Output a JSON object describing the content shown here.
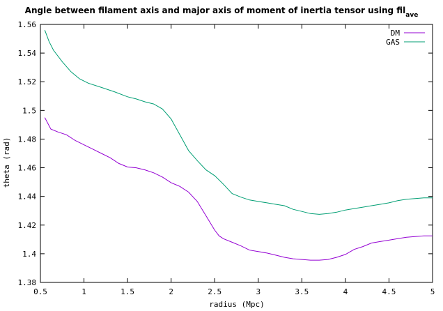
{
  "chart_data": {
    "type": "line",
    "title": "Angle between filament axis and major axis of moment of inertia tensor using fil",
    "title_subscript": "ave",
    "xlabel": "radius (Mpc)",
    "ylabel": "theta (rad)",
    "xlim": [
      0.5,
      5
    ],
    "ylim": [
      1.38,
      1.56
    ],
    "x_ticks": [
      "0.5",
      "1",
      "1.5",
      "2",
      "2.5",
      "3",
      "3.5",
      "4",
      "4.5",
      "5"
    ],
    "y_ticks": [
      "1.38",
      "1.4",
      "1.42",
      "1.44",
      "1.46",
      "1.48",
      "1.5",
      "1.52",
      "1.54",
      "1.56"
    ],
    "grid": false,
    "legend_position": "top-right",
    "series": [
      {
        "name": "DM",
        "color": "#9400d3",
        "points": [
          [
            0.55,
            1.495
          ],
          [
            0.62,
            1.487
          ],
          [
            0.7,
            1.485
          ],
          [
            0.8,
            1.483
          ],
          [
            0.9,
            1.479
          ],
          [
            1.0,
            1.476
          ],
          [
            1.1,
            1.473
          ],
          [
            1.2,
            1.47
          ],
          [
            1.3,
            1.467
          ],
          [
            1.4,
            1.463
          ],
          [
            1.5,
            1.4605
          ],
          [
            1.6,
            1.46
          ],
          [
            1.7,
            1.4585
          ],
          [
            1.8,
            1.4565
          ],
          [
            1.9,
            1.4535
          ],
          [
            2.0,
            1.4495
          ],
          [
            2.1,
            1.447
          ],
          [
            2.2,
            1.443
          ],
          [
            2.3,
            1.4365
          ],
          [
            2.4,
            1.4265
          ],
          [
            2.5,
            1.4165
          ],
          [
            2.55,
            1.4125
          ],
          [
            2.6,
            1.4105
          ],
          [
            2.7,
            1.408
          ],
          [
            2.8,
            1.4055
          ],
          [
            2.9,
            1.4025
          ],
          [
            3.0,
            1.4015
          ],
          [
            3.1,
            1.4005
          ],
          [
            3.2,
            1.399
          ],
          [
            3.3,
            1.3975
          ],
          [
            3.4,
            1.3965
          ],
          [
            3.5,
            1.396
          ],
          [
            3.6,
            1.3955
          ],
          [
            3.7,
            1.3955
          ],
          [
            3.8,
            1.396
          ],
          [
            3.9,
            1.3975
          ],
          [
            4.0,
            1.3995
          ],
          [
            4.1,
            1.403
          ],
          [
            4.2,
            1.405
          ],
          [
            4.3,
            1.4075
          ],
          [
            4.4,
            1.4085
          ],
          [
            4.5,
            1.4095
          ],
          [
            4.6,
            1.4105
          ],
          [
            4.7,
            1.4115
          ],
          [
            4.8,
            1.412
          ],
          [
            4.9,
            1.4125
          ],
          [
            5.0,
            1.4125
          ]
        ]
      },
      {
        "name": "GAS",
        "color": "#009e73",
        "points": [
          [
            0.55,
            1.556
          ],
          [
            0.6,
            1.548
          ],
          [
            0.65,
            1.542
          ],
          [
            0.75,
            1.534
          ],
          [
            0.85,
            1.527
          ],
          [
            0.95,
            1.522
          ],
          [
            1.05,
            1.519
          ],
          [
            1.2,
            1.516
          ],
          [
            1.35,
            1.513
          ],
          [
            1.5,
            1.5095
          ],
          [
            1.6,
            1.508
          ],
          [
            1.7,
            1.506
          ],
          [
            1.8,
            1.5045
          ],
          [
            1.9,
            1.501
          ],
          [
            2.0,
            1.494
          ],
          [
            2.1,
            1.483
          ],
          [
            2.2,
            1.472
          ],
          [
            2.3,
            1.465
          ],
          [
            2.4,
            1.4585
          ],
          [
            2.5,
            1.4545
          ],
          [
            2.6,
            1.4485
          ],
          [
            2.7,
            1.442
          ],
          [
            2.8,
            1.4395
          ],
          [
            2.9,
            1.4375
          ],
          [
            3.0,
            1.4365
          ],
          [
            3.1,
            1.4355
          ],
          [
            3.2,
            1.4345
          ],
          [
            3.3,
            1.4335
          ],
          [
            3.4,
            1.431
          ],
          [
            3.5,
            1.4295
          ],
          [
            3.6,
            1.428
          ],
          [
            3.7,
            1.4275
          ],
          [
            3.8,
            1.428
          ],
          [
            3.9,
            1.429
          ],
          [
            4.0,
            1.4305
          ],
          [
            4.1,
            1.4315
          ],
          [
            4.2,
            1.4325
          ],
          [
            4.3,
            1.4335
          ],
          [
            4.4,
            1.4345
          ],
          [
            4.5,
            1.4355
          ],
          [
            4.6,
            1.437
          ],
          [
            4.7,
            1.438
          ],
          [
            4.8,
            1.4385
          ],
          [
            4.9,
            1.439
          ],
          [
            5.0,
            1.439
          ]
        ]
      }
    ]
  }
}
